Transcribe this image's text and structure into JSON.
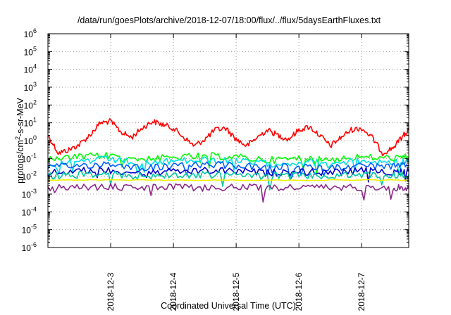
{
  "chart_data": {
    "type": "line",
    "title": "/data/run/goesPlots/archive/2018-12-07/18:00/flux/../flux/5daysEarthFluxes.txt",
    "xlabel": "Coordinated Universal Time (UTC)",
    "ylabel_base": "protons/cm",
    "ylabel_sup": "2",
    "ylabel_rest": "-s-sr-MeV",
    "log_y": true,
    "ylim": [
      1e-06,
      1000000.0
    ],
    "xlim": [
      "2018-12-02 00:00",
      "2018-12-07 18:00"
    ],
    "grid": true,
    "legend": "none",
    "x_tick_labels": [
      "2018-12-3",
      "2018-12-4",
      "2018-12-5",
      "2018-12-6",
      "2018-12-7"
    ],
    "y_tick_labels": [
      {
        "base": "10",
        "exp": "-6"
      },
      {
        "base": "10",
        "exp": "-5"
      },
      {
        "base": "10",
        "exp": "-4"
      },
      {
        "base": "10",
        "exp": "-3"
      },
      {
        "base": "10",
        "exp": "-2"
      },
      {
        "base": "10",
        "exp": "-1"
      },
      {
        "base": "10",
        "exp": "0"
      },
      {
        "base": "10",
        "exp": "1"
      },
      {
        "base": "10",
        "exp": "2"
      },
      {
        "base": "10",
        "exp": "3"
      },
      {
        "base": "10",
        "exp": "4"
      },
      {
        "base": "10",
        "exp": "5"
      },
      {
        "base": "10",
        "exp": "6"
      }
    ],
    "series": [
      {
        "color": "#ff0000",
        "x": [
          "2018-12-02 00:00",
          "2018-12-02 04:00",
          "2018-12-02 08:00",
          "2018-12-02 12:00",
          "2018-12-02 16:00",
          "2018-12-02 20:00",
          "2018-12-03 00:00",
          "2018-12-03 04:00",
          "2018-12-03 08:00",
          "2018-12-03 12:00",
          "2018-12-03 16:00",
          "2018-12-03 20:00",
          "2018-12-04 00:00",
          "2018-12-04 04:00",
          "2018-12-04 08:00",
          "2018-12-04 12:00",
          "2018-12-04 16:00",
          "2018-12-04 20:00",
          "2018-12-05 00:00",
          "2018-12-05 04:00",
          "2018-12-05 08:00",
          "2018-12-05 12:00",
          "2018-12-05 16:00",
          "2018-12-05 20:00",
          "2018-12-06 00:00",
          "2018-12-06 04:00",
          "2018-12-06 08:00",
          "2018-12-06 12:00",
          "2018-12-06 16:00",
          "2018-12-06 20:00",
          "2018-12-07 00:00",
          "2018-12-07 04:00",
          "2018-12-07 08:00",
          "2018-12-07 12:00",
          "2018-12-07 16:00",
          "2018-12-07 18:00"
        ],
        "y": [
          2,
          0.2,
          0.3,
          0.6,
          2,
          10,
          12,
          3,
          1.5,
          5,
          12,
          8,
          5,
          1.5,
          0.5,
          1.2,
          4,
          5,
          1.2,
          0.5,
          1.5,
          4,
          2,
          1.2,
          4,
          6,
          2,
          0.5,
          1.5,
          4,
          5,
          1.5,
          0.2,
          0.4,
          2,
          4
        ]
      },
      {
        "color": "#00ff00",
        "x": [
          "2018-12-02 00:00",
          "2018-12-02 12:00",
          "2018-12-03 00:00",
          "2018-12-03 12:00",
          "2018-12-04 00:00",
          "2018-12-04 12:00",
          "2018-12-05 00:00",
          "2018-12-05 12:00",
          "2018-12-06 00:00",
          "2018-12-06 12:00",
          "2018-12-07 00:00",
          "2018-12-07 12:00",
          "2018-12-07 18:00"
        ],
        "y": [
          0.08,
          0.12,
          0.15,
          0.09,
          0.11,
          0.14,
          0.12,
          0.08,
          0.1,
          0.09,
          0.12,
          0.1,
          0.12
        ]
      },
      {
        "color": "#00e0e0",
        "x": [
          "2018-12-02 00:00",
          "2018-12-02 12:00",
          "2018-12-03 00:00",
          "2018-12-03 12:00",
          "2018-12-04 00:00",
          "2018-12-04 12:00",
          "2018-12-05 00:00",
          "2018-12-05 12:00",
          "2018-12-06 00:00",
          "2018-12-06 12:00",
          "2018-12-07 00:00",
          "2018-12-07 12:00",
          "2018-12-07 18:00"
        ],
        "y": [
          0.05,
          0.07,
          0.09,
          0.05,
          0.07,
          0.08,
          0.07,
          0.05,
          0.06,
          0.06,
          0.07,
          0.06,
          0.07
        ]
      },
      {
        "color": "#0060ff",
        "x": [
          "2018-12-02 00:00",
          "2018-12-02 12:00",
          "2018-12-03 00:00",
          "2018-12-03 12:00",
          "2018-12-04 00:00",
          "2018-12-04 12:00",
          "2018-12-05 00:00",
          "2018-12-05 12:00",
          "2018-12-06 00:00",
          "2018-12-06 12:00",
          "2018-12-07 00:00",
          "2018-12-07 12:00",
          "2018-12-07 18:00"
        ],
        "y": [
          0.03,
          0.04,
          0.05,
          0.03,
          0.035,
          0.045,
          0.04,
          0.03,
          0.035,
          0.03,
          0.04,
          0.035,
          0.04
        ]
      },
      {
        "color": "#0000cc",
        "x": [
          "2018-12-02 00:00",
          "2018-12-02 12:00",
          "2018-12-03 00:00",
          "2018-12-03 12:00",
          "2018-12-04 00:00",
          "2018-12-04 12:00",
          "2018-12-05 00:00",
          "2018-12-05 12:00",
          "2018-12-06 00:00",
          "2018-12-06 12:00",
          "2018-12-07 00:00",
          "2018-12-07 12:00",
          "2018-12-07 18:00"
        ],
        "y": [
          0.015,
          0.02,
          0.022,
          0.015,
          0.018,
          0.02,
          0.02,
          0.015,
          0.018,
          0.016,
          0.02,
          0.018,
          0.02
        ]
      },
      {
        "color": "#00c8a0",
        "x": [
          "2018-12-02 00:00",
          "2018-12-02 12:00",
          "2018-12-03 00:00",
          "2018-12-03 12:00",
          "2018-12-04 00:00",
          "2018-12-04 12:00",
          "2018-12-05 00:00",
          "2018-12-05 12:00",
          "2018-12-06 00:00",
          "2018-12-06 12:00",
          "2018-12-07 00:00",
          "2018-12-07 12:00",
          "2018-12-07 18:00"
        ],
        "y": [
          0.01,
          0.012,
          0.013,
          0.01,
          0.011,
          0.012,
          0.012,
          0.01,
          0.011,
          0.01,
          0.012,
          0.011,
          0.012
        ]
      },
      {
        "color": "#f0f000",
        "x": [
          "2018-12-02 00:00",
          "2018-12-03 00:00",
          "2018-12-04 00:00",
          "2018-12-05 00:00",
          "2018-12-06 00:00",
          "2018-12-07 00:00",
          "2018-12-07 18:00"
        ],
        "y": [
          0.006,
          0.0062,
          0.006,
          0.0061,
          0.006,
          0.0062,
          0.006
        ]
      },
      {
        "color": "#8b2a8b",
        "x": [
          "2018-12-02 00:00",
          "2018-12-02 12:00",
          "2018-12-03 00:00",
          "2018-12-03 12:00",
          "2018-12-04 00:00",
          "2018-12-04 12:00",
          "2018-12-05 00:00",
          "2018-12-05 12:00",
          "2018-12-06 00:00",
          "2018-12-06 12:00",
          "2018-12-07 00:00",
          "2018-12-07 12:00",
          "2018-12-07 18:00"
        ],
        "y": [
          0.0023,
          0.0024,
          0.0025,
          0.0023,
          0.0024,
          0.0022,
          0.0024,
          0.0023,
          0.0024,
          0.0023,
          0.0024,
          0.0023,
          0.0024
        ]
      }
    ]
  }
}
